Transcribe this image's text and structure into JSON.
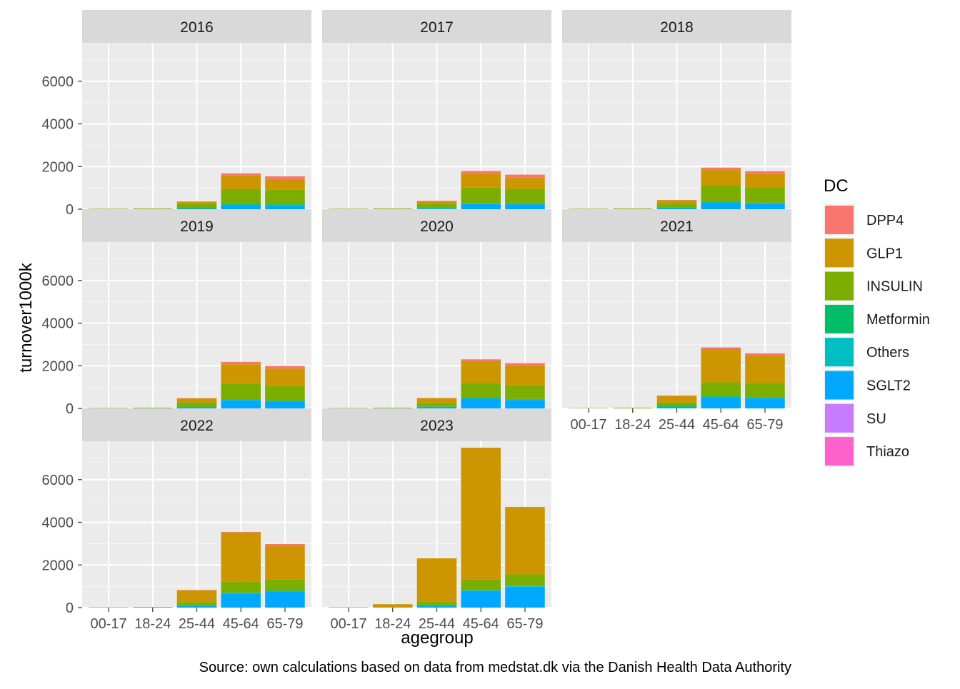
{
  "chart_data": {
    "type": "bar",
    "stacked": true,
    "faceted_by": "year",
    "ylabel": "turnover1000k",
    "xlabel": "agegroup",
    "caption": "Source: own calculations based on data from medstat.dk via the Danish Health Data Authority",
    "ylim": [
      0,
      7800
    ],
    "yticks": [
      0,
      2000,
      4000,
      6000
    ],
    "grid": true,
    "legend": {
      "title": "DC",
      "position": "right",
      "items": [
        {
          "name": "DPP4",
          "color": "#F8766D"
        },
        {
          "name": "GLP1",
          "color": "#CD9600"
        },
        {
          "name": "INSULIN",
          "color": "#7CAE00"
        },
        {
          "name": "Metformin",
          "color": "#00BE67"
        },
        {
          "name": "Others",
          "color": "#00BFC4"
        },
        {
          "name": "SGLT2",
          "color": "#00A9FF"
        },
        {
          "name": "SU",
          "color": "#C77CFF"
        },
        {
          "name": "Thiazo",
          "color": "#FF61CC"
        }
      ]
    },
    "categories": [
      "00-17",
      "18-24",
      "25-44",
      "45-64",
      "65-79"
    ],
    "stack_order": [
      "SGLT2",
      "Others",
      "Metformin",
      "INSULIN",
      "GLP1",
      "DPP4"
    ],
    "panels": [
      {
        "label": "2016",
        "series": {
          "SGLT2": [
            0,
            0,
            30,
            200,
            180
          ],
          "Others": [
            0,
            0,
            5,
            20,
            20
          ],
          "Metformin": [
            0,
            0,
            15,
            30,
            30
          ],
          "INSULIN": [
            20,
            30,
            210,
            700,
            680
          ],
          "GLP1": [
            0,
            0,
            90,
            630,
            500
          ],
          "DPP4": [
            0,
            0,
            10,
            100,
            130
          ]
        }
      },
      {
        "label": "2017",
        "series": {
          "SGLT2": [
            0,
            0,
            40,
            240,
            220
          ],
          "Others": [
            0,
            0,
            5,
            20,
            20
          ],
          "Metformin": [
            0,
            0,
            15,
            30,
            30
          ],
          "INSULIN": [
            20,
            30,
            200,
            720,
            690
          ],
          "GLP1": [
            0,
            0,
            120,
            670,
            520
          ],
          "DPP4": [
            0,
            0,
            10,
            110,
            140
          ]
        }
      },
      {
        "label": "2018",
        "series": {
          "SGLT2": [
            0,
            0,
            50,
            300,
            260
          ],
          "Others": [
            0,
            0,
            5,
            20,
            20
          ],
          "Metformin": [
            0,
            0,
            15,
            30,
            30
          ],
          "INSULIN": [
            20,
            30,
            200,
            770,
            720
          ],
          "GLP1": [
            0,
            0,
            150,
            720,
            620
          ],
          "DPP4": [
            0,
            0,
            10,
            110,
            130
          ]
        }
      },
      {
        "label": "2019",
        "series": {
          "SGLT2": [
            0,
            0,
            60,
            380,
            320
          ],
          "Others": [
            0,
            0,
            5,
            20,
            20
          ],
          "Metformin": [
            0,
            0,
            15,
            30,
            30
          ],
          "INSULIN": [
            20,
            30,
            200,
            720,
            690
          ],
          "GLP1": [
            0,
            0,
            190,
            920,
            810
          ],
          "DPP4": [
            0,
            0,
            10,
            110,
            120
          ]
        }
      },
      {
        "label": "2020",
        "series": {
          "SGLT2": [
            0,
            0,
            70,
            450,
            390
          ],
          "Others": [
            0,
            0,
            5,
            20,
            20
          ],
          "Metformin": [
            0,
            0,
            15,
            30,
            30
          ],
          "INSULIN": [
            20,
            30,
            170,
            690,
            660
          ],
          "GLP1": [
            0,
            0,
            220,
            1020,
            910
          ],
          "DPP4": [
            0,
            0,
            10,
            90,
            110
          ]
        }
      },
      {
        "label": "2021",
        "series": {
          "SGLT2": [
            0,
            0,
            80,
            520,
            480
          ],
          "Others": [
            0,
            0,
            5,
            20,
            20
          ],
          "Metformin": [
            0,
            0,
            15,
            30,
            30
          ],
          "INSULIN": [
            20,
            30,
            180,
            650,
            660
          ],
          "GLP1": [
            0,
            0,
            310,
            1560,
            1290
          ],
          "DPP4": [
            0,
            0,
            10,
            80,
            100
          ]
        }
      },
      {
        "label": "2022",
        "series": {
          "SGLT2": [
            0,
            0,
            90,
            660,
            750
          ],
          "Others": [
            0,
            0,
            5,
            20,
            20
          ],
          "Metformin": [
            0,
            0,
            15,
            30,
            30
          ],
          "INSULIN": [
            20,
            30,
            150,
            520,
            510
          ],
          "GLP1": [
            0,
            0,
            560,
            2290,
            1580
          ],
          "DPP4": [
            0,
            0,
            5,
            30,
            90
          ]
        }
      },
      {
        "label": "2023",
        "series": {
          "SGLT2": [
            0,
            0,
            100,
            780,
            980
          ],
          "Others": [
            0,
            0,
            5,
            20,
            20
          ],
          "Metformin": [
            0,
            0,
            15,
            30,
            30
          ],
          "INSULIN": [
            20,
            30,
            150,
            480,
            530
          ],
          "GLP1": [
            0,
            130,
            2040,
            6180,
            3150
          ],
          "DPP4": [
            0,
            0,
            0,
            10,
            10
          ]
        }
      }
    ]
  }
}
